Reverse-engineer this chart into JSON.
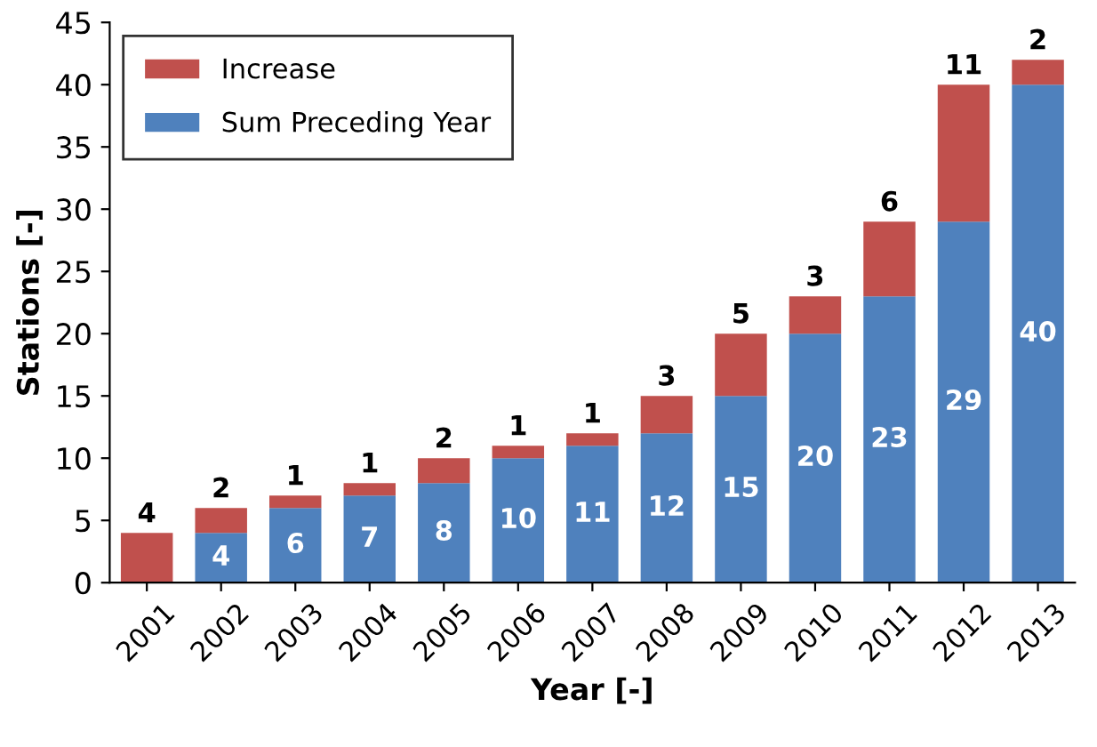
{
  "chart_data": {
    "type": "bar",
    "stacked": true,
    "xlabel": "Year [-]",
    "ylabel": "Stations [-]",
    "categories": [
      "2001",
      "2002",
      "2003",
      "2004",
      "2005",
      "2006",
      "2007",
      "2008",
      "2009",
      "2010",
      "2011",
      "2012",
      "2013"
    ],
    "series": [
      {
        "name": "Sum Preceding Year",
        "color": "#4f81bd",
        "values": [
          0,
          4,
          6,
          7,
          8,
          10,
          11,
          12,
          15,
          20,
          23,
          29,
          40
        ],
        "value_labels": [
          null,
          "4",
          "6",
          "7",
          "8",
          "10",
          "11",
          "12",
          "15",
          "20",
          "23",
          "29",
          "40"
        ]
      },
      {
        "name": "Increase",
        "color": "#c0504d",
        "values": [
          4,
          2,
          1,
          1,
          2,
          1,
          1,
          3,
          5,
          3,
          6,
          11,
          2
        ],
        "value_labels": [
          "4",
          "2",
          "1",
          "1",
          "2",
          "1",
          "1",
          "3",
          "5",
          "3",
          "6",
          "11",
          "2"
        ]
      }
    ],
    "ylim": [
      0,
      45
    ],
    "yticks": [
      0,
      5,
      10,
      15,
      20,
      25,
      30,
      35,
      40,
      45
    ],
    "grid": false,
    "legend": "top left"
  }
}
